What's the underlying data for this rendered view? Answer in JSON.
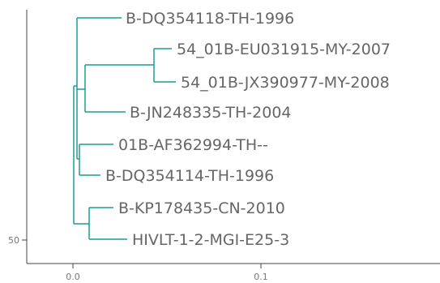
{
  "tree": {
    "x_ticks": [
      "0.0",
      "0.1"
    ],
    "y_tick": "50",
    "leaves": [
      "B-DQ354118-TH-1996",
      "54_01B-EU031915-MY-2007",
      "54_01B-JX390977-MY-2008",
      "B-JN248335-TH-2004",
      "01B-AF362994-TH--",
      "B-DQ354114-TH-1996",
      "B-KP178435-CN-2010",
      "HIVLT-1-2-MGI-E25-3"
    ]
  },
  "colors": {
    "branch": "#1a9e91",
    "axis": "#444444",
    "label": "#666666"
  }
}
